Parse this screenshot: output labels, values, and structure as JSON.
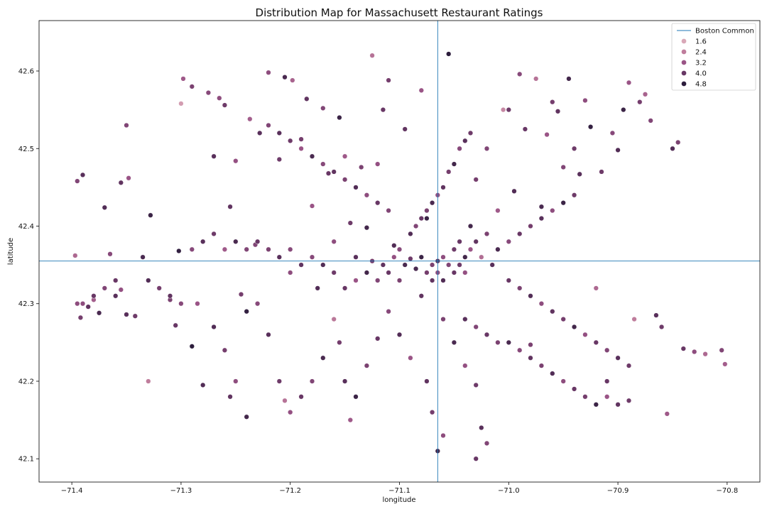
{
  "chart_data": {
    "type": "scatter",
    "title": "Distribution Map for Massachusett Restaurant Ratings",
    "xlabel": "longitude",
    "ylabel": "latitude",
    "xlim": [
      -71.43,
      -70.77
    ],
    "ylim": [
      42.07,
      42.665
    ],
    "x_ticks": [
      -71.4,
      -71.3,
      -71.2,
      -71.1,
      -71.0,
      -70.9,
      -70.8
    ],
    "x_tick_labels": [
      "−71.4",
      "−71.3",
      "−71.2",
      "−71.1",
      "−71.0",
      "−70.9",
      "−70.8"
    ],
    "y_ticks": [
      42.1,
      42.2,
      42.3,
      42.4,
      42.5,
      42.6
    ],
    "y_tick_labels": [
      "42.1",
      "42.2",
      "42.3",
      "42.4",
      "42.5",
      "42.6"
    ],
    "grid": false,
    "legend_position": "top-right",
    "reference_lines": {
      "name": "Boston Common",
      "x": -71.065,
      "y": 42.355,
      "color": "#1f77b4"
    },
    "hue_legend": [
      {
        "label": "1.6",
        "value": 1.6,
        "color": "#d9a8b8"
      },
      {
        "label": "2.4",
        "value": 2.4,
        "color": "#bf7d9c"
      },
      {
        "label": "3.2",
        "value": 3.2,
        "color": "#9a5486"
      },
      {
        "label": "4.0",
        "value": 4.0,
        "color": "#683765"
      },
      {
        "label": "4.8",
        "value": 4.8,
        "color": "#2c1d3c"
      }
    ],
    "points": [
      [
        -71.395,
        42.458,
        3.6
      ],
      [
        -71.39,
        42.466,
        4.2
      ],
      [
        -71.397,
        42.362,
        2.8
      ],
      [
        -71.395,
        42.3,
        3.4
      ],
      [
        -71.385,
        42.296,
        4.1
      ],
      [
        -71.38,
        42.305,
        3.0
      ],
      [
        -71.392,
        42.282,
        3.8
      ],
      [
        -71.375,
        42.288,
        4.4
      ],
      [
        -71.37,
        42.424,
        4.3
      ],
      [
        -71.365,
        42.364,
        3.5
      ],
      [
        -71.36,
        42.33,
        4.0
      ],
      [
        -71.355,
        42.318,
        3.3
      ],
      [
        -71.355,
        42.456,
        4.1
      ],
      [
        -71.348,
        42.462,
        3.2
      ],
      [
        -71.35,
        42.53,
        3.6
      ],
      [
        -71.35,
        42.286,
        4.2
      ],
      [
        -71.342,
        42.284,
        3.9
      ],
      [
        -71.335,
        42.36,
        4.4
      ],
      [
        -71.33,
        42.2,
        2.4
      ],
      [
        -71.328,
        42.414,
        4.6
      ],
      [
        -71.31,
        42.305,
        3.7
      ],
      [
        -71.305,
        42.272,
        4.0
      ],
      [
        -71.302,
        42.368,
        4.7
      ],
      [
        -71.3,
        42.558,
        1.8
      ],
      [
        -71.298,
        42.59,
        3.1
      ],
      [
        -71.29,
        42.58,
        3.7
      ],
      [
        -71.285,
        42.3,
        3.2
      ],
      [
        -71.28,
        42.195,
        4.3
      ],
      [
        -71.275,
        42.572,
        3.5
      ],
      [
        -71.27,
        42.49,
        4.2
      ],
      [
        -71.265,
        42.565,
        3.4
      ],
      [
        -71.26,
        42.556,
        3.9
      ],
      [
        -71.255,
        42.425,
        4.1
      ],
      [
        -71.25,
        42.484,
        3.3
      ],
      [
        -71.245,
        42.312,
        3.8
      ],
      [
        -71.24,
        42.154,
        4.5
      ],
      [
        -71.237,
        42.538,
        3.0
      ],
      [
        -71.232,
        42.376,
        3.6
      ],
      [
        -71.228,
        42.52,
        4.2
      ],
      [
        -71.22,
        42.598,
        3.4
      ],
      [
        -71.21,
        42.486,
        3.9
      ],
      [
        -71.205,
        42.592,
        4.4
      ],
      [
        -71.2,
        42.37,
        3.5
      ],
      [
        -71.198,
        42.588,
        2.9
      ],
      [
        -71.19,
        42.512,
        3.8
      ],
      [
        -71.185,
        42.564,
        4.1
      ],
      [
        -71.18,
        42.426,
        3.2
      ],
      [
        -71.175,
        42.32,
        4.3
      ],
      [
        -71.17,
        42.552,
        3.6
      ],
      [
        -71.165,
        42.468,
        4.0
      ],
      [
        -71.16,
        42.38,
        3.4
      ],
      [
        -71.155,
        42.54,
        4.6
      ],
      [
        -71.15,
        42.49,
        3.1
      ],
      [
        -71.145,
        42.404,
        3.9
      ],
      [
        -71.14,
        42.36,
        4.2
      ],
      [
        -71.135,
        42.476,
        3.7
      ],
      [
        -71.13,
        42.398,
        4.5
      ],
      [
        -71.125,
        42.62,
        2.6
      ],
      [
        -71.12,
        42.48,
        3.3
      ],
      [
        -71.115,
        42.55,
        4.0
      ],
      [
        -71.11,
        42.588,
        3.8
      ],
      [
        -71.105,
        42.375,
        4.3
      ],
      [
        -71.1,
        42.37,
        3.5
      ],
      [
        -71.095,
        42.525,
        4.1
      ],
      [
        -71.09,
        42.358,
        3.9
      ],
      [
        -71.085,
        42.345,
        4.4
      ],
      [
        -71.08,
        42.575,
        3.2
      ],
      [
        -71.075,
        42.41,
        4.6
      ],
      [
        -71.07,
        42.35,
        3.7
      ],
      [
        -71.065,
        42.355,
        4.2
      ],
      [
        -71.06,
        42.36,
        3.4
      ],
      [
        -71.055,
        42.622,
        4.8
      ],
      [
        -71.05,
        42.37,
        3.9
      ],
      [
        -71.045,
        42.38,
        4.0
      ],
      [
        -71.04,
        42.34,
        3.3
      ],
      [
        -71.035,
        42.4,
        4.5
      ],
      [
        -71.03,
        42.46,
        3.8
      ],
      [
        -71.025,
        42.36,
        2.7
      ],
      [
        -71.02,
        42.5,
        3.6
      ],
      [
        -71.015,
        42.35,
        4.2
      ],
      [
        -71.01,
        42.42,
        3.1
      ],
      [
        -71.005,
        42.55,
        2.2
      ],
      [
        -71.0,
        42.55,
        3.9
      ],
      [
        -70.995,
        42.445,
        4.3
      ],
      [
        -70.99,
        42.596,
        3.5
      ],
      [
        -70.985,
        42.525,
        4.0
      ],
      [
        -70.98,
        42.247,
        3.7
      ],
      [
        -70.975,
        42.59,
        2.6
      ],
      [
        -70.97,
        42.425,
        4.4
      ],
      [
        -70.965,
        42.518,
        3.2
      ],
      [
        -70.96,
        42.56,
        3.8
      ],
      [
        -70.955,
        42.548,
        4.1
      ],
      [
        -70.95,
        42.476,
        3.6
      ],
      [
        -70.945,
        42.59,
        4.5
      ],
      [
        -70.94,
        42.5,
        3.9
      ],
      [
        -70.935,
        42.467,
        4.2
      ],
      [
        -70.93,
        42.562,
        3.4
      ],
      [
        -70.925,
        42.528,
        4.7
      ],
      [
        -70.92,
        42.32,
        2.8
      ],
      [
        -70.915,
        42.47,
        3.9
      ],
      [
        -70.91,
        42.2,
        4.0
      ],
      [
        -70.905,
        42.52,
        3.5
      ],
      [
        -70.9,
        42.498,
        4.3
      ],
      [
        -70.895,
        42.55,
        4.6
      ],
      [
        -70.89,
        42.585,
        3.2
      ],
      [
        -70.885,
        42.28,
        2.4
      ],
      [
        -70.88,
        42.56,
        3.8
      ],
      [
        -70.875,
        42.57,
        2.9
      ],
      [
        -70.87,
        42.536,
        3.6
      ],
      [
        -70.865,
        42.285,
        4.2
      ],
      [
        -70.86,
        42.27,
        3.9
      ],
      [
        -70.855,
        42.158,
        3.1
      ],
      [
        -70.85,
        42.5,
        4.3
      ],
      [
        -70.845,
        42.508,
        3.7
      ],
      [
        -70.84,
        42.242,
        4.0
      ],
      [
        -70.83,
        42.238,
        3.4
      ],
      [
        -70.82,
        42.235,
        2.8
      ],
      [
        -70.805,
        42.24,
        3.6
      ],
      [
        -70.802,
        42.222,
        3.0
      ],
      [
        -71.08,
        42.31,
        4.1
      ],
      [
        -71.06,
        42.28,
        3.7
      ],
      [
        -71.05,
        42.25,
        4.4
      ],
      [
        -71.04,
        42.22,
        3.3
      ],
      [
        -71.03,
        42.195,
        3.9
      ],
      [
        -71.025,
        42.14,
        4.2
      ],
      [
        -71.02,
        42.12,
        3.6
      ],
      [
        -71.03,
        42.1,
        4.0
      ],
      [
        -71.06,
        42.13,
        3.4
      ],
      [
        -71.065,
        42.11,
        4.5
      ],
      [
        -71.07,
        42.16,
        3.8
      ],
      [
        -71.075,
        42.2,
        4.1
      ],
      [
        -71.09,
        42.23,
        3.2
      ],
      [
        -71.1,
        42.26,
        4.3
      ],
      [
        -71.11,
        42.29,
        3.5
      ],
      [
        -71.12,
        42.255,
        4.0
      ],
      [
        -71.13,
        42.22,
        3.7
      ],
      [
        -71.14,
        42.18,
        4.6
      ],
      [
        -71.145,
        42.15,
        3.1
      ],
      [
        -71.15,
        42.2,
        4.2
      ],
      [
        -71.155,
        42.25,
        3.8
      ],
      [
        -71.16,
        42.28,
        2.5
      ],
      [
        -71.17,
        42.23,
        4.4
      ],
      [
        -71.18,
        42.2,
        3.6
      ],
      [
        -71.19,
        42.18,
        4.0
      ],
      [
        -71.2,
        42.16,
        3.3
      ],
      [
        -71.205,
        42.175,
        2.6
      ],
      [
        -71.21,
        42.2,
        3.9
      ],
      [
        -71.22,
        42.26,
        4.2
      ],
      [
        -71.23,
        42.3,
        3.5
      ],
      [
        -71.24,
        42.29,
        4.7
      ],
      [
        -71.25,
        42.2,
        3.4
      ],
      [
        -71.255,
        42.18,
        4.1
      ],
      [
        -71.26,
        42.24,
        3.8
      ],
      [
        -71.27,
        42.27,
        4.3
      ],
      [
        -71.29,
        42.245,
        4.9
      ],
      [
        -71.12,
        42.33,
        3.6
      ],
      [
        -71.11,
        42.34,
        4.0
      ],
      [
        -71.1,
        42.33,
        3.7
      ],
      [
        -71.095,
        42.35,
        4.4
      ],
      [
        -71.105,
        42.36,
        3.3
      ],
      [
        -71.115,
        42.35,
        4.1
      ],
      [
        -71.125,
        42.355,
        3.8
      ],
      [
        -71.13,
        42.34,
        4.5
      ],
      [
        -71.14,
        42.33,
        3.2
      ],
      [
        -71.15,
        42.32,
        4.0
      ],
      [
        -71.16,
        42.34,
        3.9
      ],
      [
        -71.17,
        42.35,
        4.3
      ],
      [
        -71.18,
        42.36,
        3.5
      ],
      [
        -71.19,
        42.35,
        4.1
      ],
      [
        -71.2,
        42.34,
        3.4
      ],
      [
        -71.21,
        42.36,
        4.2
      ],
      [
        -71.22,
        42.37,
        3.7
      ],
      [
        -71.23,
        42.38,
        4.0
      ],
      [
        -71.24,
        42.37,
        3.6
      ],
      [
        -71.25,
        42.38,
        4.4
      ],
      [
        -71.26,
        42.37,
        3.1
      ],
      [
        -71.27,
        42.39,
        3.9
      ],
      [
        -71.28,
        42.38,
        4.2
      ],
      [
        -71.29,
        42.37,
        3.5
      ],
      [
        -71.08,
        42.36,
        4.6
      ],
      [
        -71.075,
        42.34,
        3.8
      ],
      [
        -71.07,
        42.33,
        4.1
      ],
      [
        -71.065,
        42.34,
        3.4
      ],
      [
        -71.06,
        42.33,
        4.3
      ],
      [
        -71.055,
        42.35,
        3.6
      ],
      [
        -71.05,
        42.34,
        4.0
      ],
      [
        -71.045,
        42.35,
        3.9
      ],
      [
        -71.04,
        42.36,
        4.5
      ],
      [
        -71.035,
        42.37,
        3.2
      ],
      [
        -71.03,
        42.38,
        4.1
      ],
      [
        -71.02,
        42.39,
        3.7
      ],
      [
        -71.01,
        42.37,
        4.4
      ],
      [
        -71.0,
        42.38,
        3.5
      ],
      [
        -70.99,
        42.39,
        4.0
      ],
      [
        -70.98,
        42.4,
        3.8
      ],
      [
        -70.97,
        42.41,
        4.2
      ],
      [
        -70.96,
        42.42,
        3.4
      ],
      [
        -70.95,
        42.43,
        4.6
      ],
      [
        -70.94,
        42.44,
        3.9
      ],
      [
        -71.09,
        42.39,
        4.3
      ],
      [
        -71.085,
        42.4,
        3.6
      ],
      [
        -71.08,
        42.41,
        4.0
      ],
      [
        -71.075,
        42.42,
        3.7
      ],
      [
        -71.07,
        42.43,
        4.4
      ],
      [
        -71.065,
        42.44,
        3.3
      ],
      [
        -71.06,
        42.45,
        4.1
      ],
      [
        -71.055,
        42.47,
        3.8
      ],
      [
        -71.05,
        42.48,
        4.5
      ],
      [
        -71.045,
        42.5,
        3.5
      ],
      [
        -71.04,
        42.51,
        4.2
      ],
      [
        -71.035,
        42.52,
        3.9
      ],
      [
        -71.11,
        42.42,
        3.6
      ],
      [
        -71.12,
        42.43,
        4.0
      ],
      [
        -71.13,
        42.44,
        3.4
      ],
      [
        -71.14,
        42.45,
        4.3
      ],
      [
        -71.15,
        42.46,
        3.7
      ],
      [
        -71.16,
        42.47,
        4.1
      ],
      [
        -71.17,
        42.48,
        3.5
      ],
      [
        -71.18,
        42.49,
        4.4
      ],
      [
        -71.19,
        42.5,
        3.2
      ],
      [
        -71.2,
        42.51,
        3.9
      ],
      [
        -71.21,
        42.52,
        4.2
      ],
      [
        -71.22,
        42.53,
        3.6
      ],
      [
        -71.0,
        42.33,
        4.0
      ],
      [
        -70.99,
        42.32,
        3.7
      ],
      [
        -70.98,
        42.31,
        4.3
      ],
      [
        -70.97,
        42.3,
        3.4
      ],
      [
        -70.96,
        42.29,
        4.1
      ],
      [
        -70.95,
        42.28,
        3.8
      ],
      [
        -70.94,
        42.27,
        4.5
      ],
      [
        -70.93,
        42.26,
        3.3
      ],
      [
        -70.92,
        42.25,
        4.0
      ],
      [
        -70.91,
        42.24,
        3.6
      ],
      [
        -70.9,
        42.23,
        4.2
      ],
      [
        -70.89,
        42.22,
        3.9
      ],
      [
        -71.0,
        42.25,
        4.4
      ],
      [
        -70.99,
        42.24,
        3.5
      ],
      [
        -70.98,
        42.23,
        4.1
      ],
      [
        -70.97,
        42.22,
        3.7
      ],
      [
        -70.96,
        42.21,
        4.3
      ],
      [
        -70.95,
        42.2,
        3.4
      ],
      [
        -70.94,
        42.19,
        4.0
      ],
      [
        -70.93,
        42.18,
        3.8
      ],
      [
        -70.92,
        42.17,
        4.6
      ],
      [
        -70.91,
        42.18,
        3.2
      ],
      [
        -70.9,
        42.17,
        4.1
      ],
      [
        -70.89,
        42.175,
        3.9
      ],
      [
        -71.04,
        42.28,
        4.2
      ],
      [
        -71.03,
        42.27,
        3.6
      ],
      [
        -71.02,
        42.26,
        4.0
      ],
      [
        -71.01,
        42.25,
        3.7
      ],
      [
        -71.3,
        42.3,
        3.5
      ],
      [
        -71.31,
        42.31,
        4.1
      ],
      [
        -71.32,
        42.32,
        3.8
      ],
      [
        -71.33,
        42.33,
        4.3
      ],
      [
        -71.39,
        42.3,
        3.4
      ],
      [
        -71.38,
        42.31,
        4.0
      ],
      [
        -71.37,
        42.32,
        3.6
      ],
      [
        -71.36,
        42.31,
        4.2
      ]
    ]
  }
}
